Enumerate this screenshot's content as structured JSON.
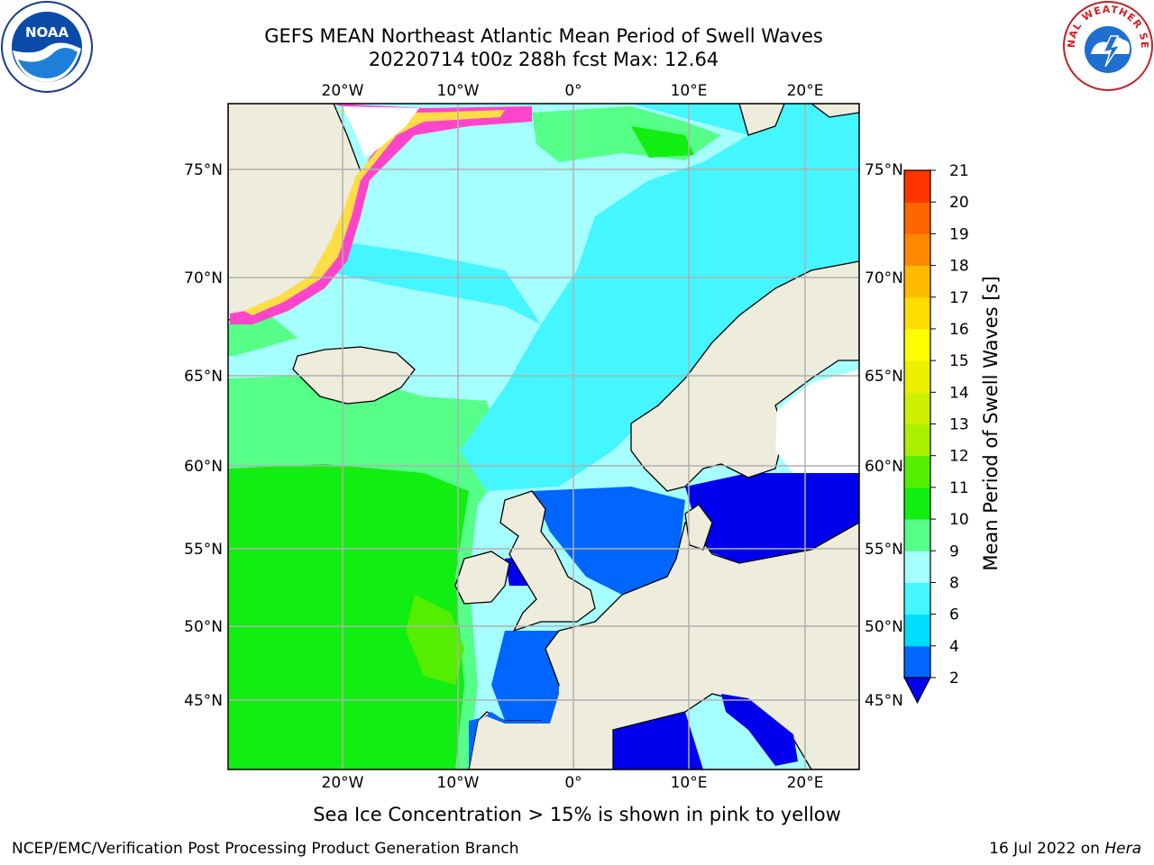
{
  "title": {
    "line1": "GEFS MEAN Northeast Atlantic Mean Period of Swell Waves",
    "line2": "20220714 t00z 288h fcst   Max: 12.64"
  },
  "logos": {
    "left": "noaa-logo",
    "left_text": "NOAA",
    "right": "nws-logo",
    "right_text": "NATIONAL WEATHER SERVICE"
  },
  "map": {
    "lon_labels": [
      "20°W",
      "10°W",
      "0°",
      "10°E",
      "20°E"
    ],
    "lat_labels": [
      "75°N",
      "70°N",
      "65°N",
      "60°N",
      "55°N",
      "50°N",
      "45°N"
    ],
    "colors": {
      "land": "#eeecdc",
      "coast": "#000000",
      "grid": "#b0b0b0",
      "ice_white": "#ffffff",
      "ice_pink": "#ff44cc",
      "ice_yellow": "#ffdd44"
    }
  },
  "colorbar": {
    "title": "Mean Period of Swell Waves [s]",
    "levels": [
      "2",
      "4",
      "6",
      "8",
      "9",
      "10",
      "11",
      "12",
      "13",
      "14",
      "15",
      "16",
      "17",
      "18",
      "19",
      "20",
      "21"
    ],
    "colors": [
      "#0066ff",
      "#00ddff",
      "#44f6ff",
      "#a6ffff",
      "#55ff88",
      "#11ee11",
      "#55ee00",
      "#aaee00",
      "#ccf000",
      "#eef000",
      "#ffff00",
      "#ffdd00",
      "#ffbb00",
      "#ff8800",
      "#ff6600",
      "#ff3300"
    ],
    "under_color": "#0000ee",
    "over_color": "#ff0000"
  },
  "note": "Sea Ice Concentration > 15% is shown in pink to yellow",
  "footer": {
    "left": "NCEP/EMC/Verification Post Processing Product Generation Branch",
    "date": "16 Jul 2022 on",
    "machine": "Hera"
  }
}
